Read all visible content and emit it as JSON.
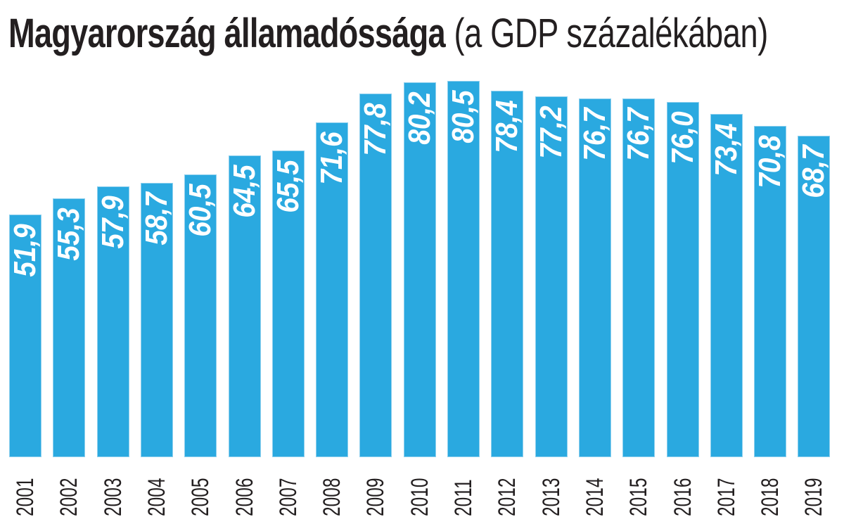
{
  "title": {
    "bold": "Magyarország államadóssága",
    "light": "(a GDP százalékában)"
  },
  "style": {
    "bar_color": "#2aa9e0",
    "label_color": "#ffffff",
    "text_color": "#231f20"
  },
  "chart_data": {
    "type": "bar",
    "title": "Magyarország államadóssága (a GDP százalékában)",
    "xlabel": "",
    "ylabel": "",
    "ylim": [
      0,
      80.5
    ],
    "grid": false,
    "legend": null,
    "categories": [
      "2001",
      "2002",
      "2003",
      "2004",
      "2005",
      "2006",
      "2007",
      "2008",
      "2009",
      "2010",
      "2011",
      "2012",
      "2013",
      "2014",
      "2015",
      "2016",
      "2017",
      "2018",
      "2019"
    ],
    "values": [
      51.9,
      55.3,
      57.9,
      58.7,
      60.5,
      64.5,
      65.5,
      71.6,
      77.8,
      80.2,
      80.5,
      78.4,
      77.2,
      76.7,
      76.7,
      76.0,
      73.4,
      70.8,
      68.7
    ],
    "value_labels": [
      "51,9",
      "55,3",
      "57,9",
      "58,7",
      "60,5",
      "64,5",
      "65,5",
      "71,6",
      "77,8",
      "80,2",
      "80,5",
      "78,4",
      "77,2",
      "76,7",
      "76,7",
      "76,0",
      "73,4",
      "70,8",
      "68,7"
    ]
  }
}
